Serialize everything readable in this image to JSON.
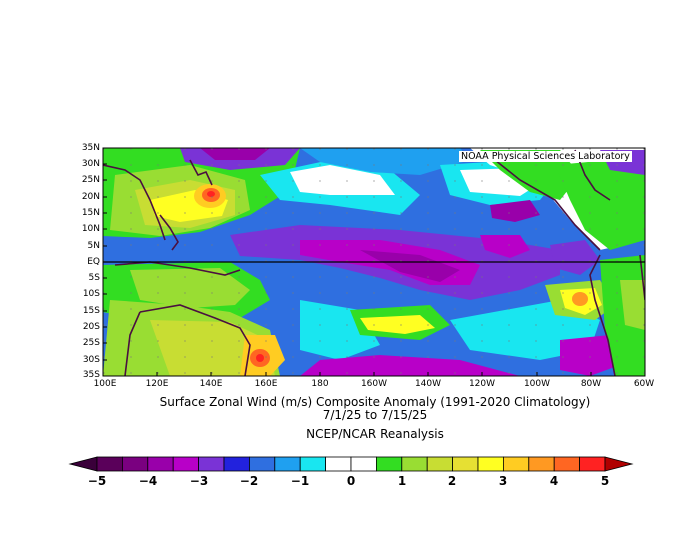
{
  "credit": "NOAA Physical Sciences Laboratory",
  "title": "Surface Zonal Wind (m/s) Composite Anomaly (1991-2020 Climatology)",
  "date_range": "7/1/25  to 7/15/25",
  "source": "NCEP/NCAR Reanalysis",
  "lat_labels": [
    "35N",
    "30N",
    "25N",
    "20N",
    "15N",
    "10N",
    "5N",
    "EQ",
    "5S",
    "10S",
    "15S",
    "20S",
    "25S",
    "30S",
    "35S"
  ],
  "lon_labels": [
    "100E",
    "120E",
    "140E",
    "160E",
    "180",
    "160W",
    "140W",
    "120W",
    "100W",
    "80W",
    "60W"
  ],
  "colorbar": {
    "labels": [
      "-5",
      "-4",
      "-3",
      "-2",
      "-1",
      "0",
      "1",
      "2",
      "3",
      "4",
      "5"
    ],
    "colors": [
      "#5a005a",
      "#7a0080",
      "#9900aa",
      "#b800c8",
      "#7a33d6",
      "#2222dd",
      "#2f6fe0",
      "#1fa0f0",
      "#19e6f0",
      "#ffffff",
      "#ffffff",
      "#33dd22",
      "#99dd33",
      "#c8dd33",
      "#e6e033",
      "#ffff22",
      "#ffcc22",
      "#ff9922",
      "#ff6622",
      "#ff2222"
    ]
  }
}
